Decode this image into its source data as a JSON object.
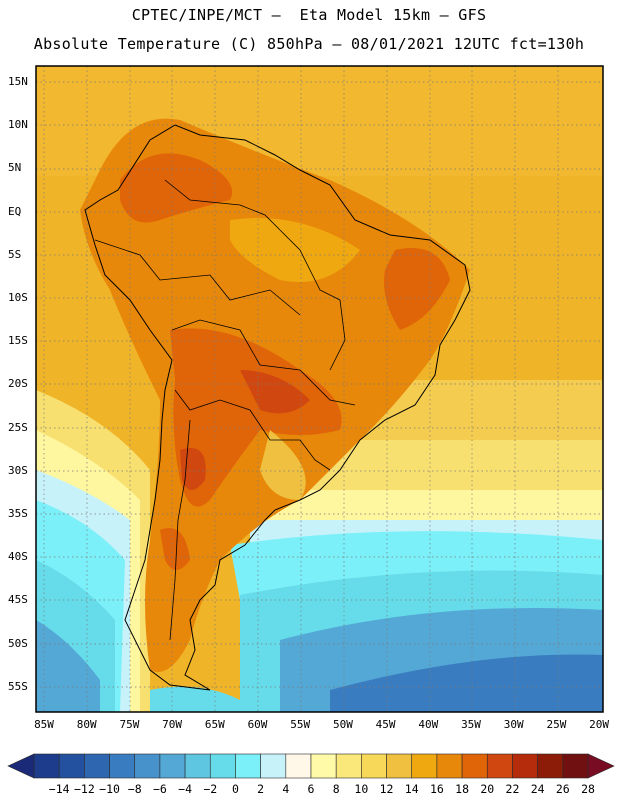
{
  "header": {
    "title_line1": "CPTEC/INPE/MCT –  Eta Model 15km – GFS",
    "title_line2": "Absolute Temperature (C) 850hPa – 08/01/2021 12UTC fct=130h"
  },
  "map": {
    "latitude_labels": [
      "15N",
      "10N",
      "5N",
      "EQ",
      "5S",
      "10S",
      "15S",
      "20S",
      "25S",
      "30S",
      "35S",
      "40S",
      "45S",
      "50S",
      "55S"
    ],
    "longitude_labels": [
      "85W",
      "80W",
      "75W",
      "70W",
      "65W",
      "60W",
      "55W",
      "50W",
      "45W",
      "40W",
      "35W",
      "30W",
      "25W",
      "20W"
    ]
  },
  "colorbar": {
    "labels": [
      "-14",
      "-12",
      "-10",
      "-8",
      "-6",
      "-4",
      "-2",
      "0",
      "2",
      "4",
      "6",
      "8",
      "10",
      "12",
      "14",
      "16",
      "18",
      "20",
      "22",
      "24",
      "26",
      "28"
    ],
    "colors": [
      "#1e3c8c",
      "#2450a0",
      "#2e66b0",
      "#3a7cc0",
      "#4892cc",
      "#54a8d6",
      "#5ec6e0",
      "#66dcea",
      "#7cf0f8",
      "#c8f2fa",
      "#fff8e8",
      "#fffaa8",
      "#fbe87a",
      "#f8d858",
      "#f0c040",
      "#f0a810",
      "#e8880a",
      "#e06408",
      "#d04810",
      "#b42c0c",
      "#8c1c08",
      "#701010"
    ],
    "low_arrow_color": "#1a2a78",
    "high_arrow_color": "#780c22"
  }
}
